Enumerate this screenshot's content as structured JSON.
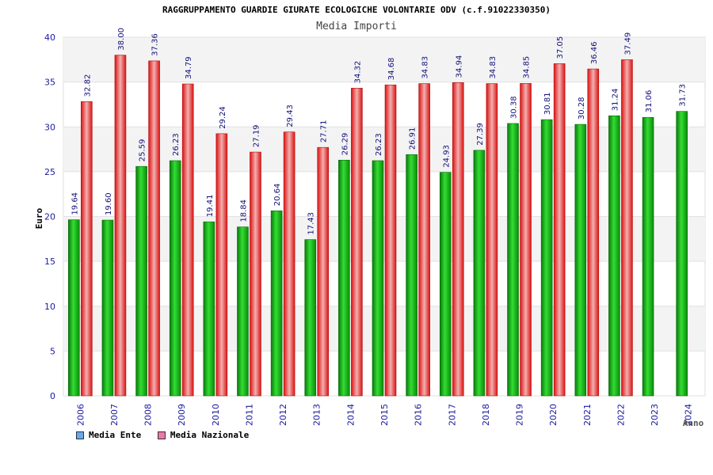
{
  "chart_data": {
    "type": "bar",
    "title": "RAGGRUPPAMENTO GUARDIE GIURATE ECOLOGICHE VOLONTARIE ODV (c.f.91022330350)",
    "subtitle": "Media Importi",
    "xlabel": "Anno",
    "ylabel": "Euro",
    "ylim": [
      0,
      40
    ],
    "yticks": [
      "0",
      "5",
      "10",
      "15",
      "20",
      "25",
      "30",
      "35",
      "40"
    ],
    "categories": [
      "2006",
      "2007",
      "2008",
      "2009",
      "2010",
      "2011",
      "2012",
      "2013",
      "2014",
      "2015",
      "2016",
      "2017",
      "2018",
      "2019",
      "2020",
      "2021",
      "2022",
      "2023",
      "2024"
    ],
    "series": [
      {
        "name": "Media Ente",
        "color": "#00aa00",
        "values": [
          19.64,
          19.6,
          25.59,
          26.23,
          19.41,
          18.84,
          20.64,
          17.43,
          26.29,
          26.23,
          26.91,
          24.93,
          27.39,
          30.38,
          30.81,
          30.28,
          31.24,
          31.06,
          31.73
        ],
        "labels": [
          "19.64",
          "19.60",
          "25.59",
          "26.23",
          "19.41",
          "18.84",
          "20.64",
          "17.43",
          "26.29",
          "26.23",
          "26.91",
          "24.93",
          "27.39",
          "30.38",
          "30.81",
          "30.28",
          "31.24",
          "31.06",
          "31.73"
        ]
      },
      {
        "name": "Media Nazionale",
        "color": "#ee2222",
        "values": [
          32.82,
          38.0,
          37.36,
          34.79,
          29.24,
          27.19,
          29.43,
          27.71,
          34.32,
          34.68,
          34.83,
          34.94,
          34.83,
          34.85,
          37.05,
          36.46,
          37.49,
          null,
          null
        ],
        "labels": [
          "32.82",
          "38.00",
          "37.36",
          "34.79",
          "29.24",
          "27.19",
          "29.43",
          "27.71",
          "34.32",
          "34.68",
          "34.83",
          "34.94",
          "34.83",
          "34.85",
          "37.05",
          "36.46",
          "37.49",
          null,
          null
        ]
      }
    ],
    "legend": [
      {
        "label": "Media Ente",
        "color": "#66aaee"
      },
      {
        "label": "Media Nazionale",
        "color": "#ee77aa"
      }
    ]
  }
}
